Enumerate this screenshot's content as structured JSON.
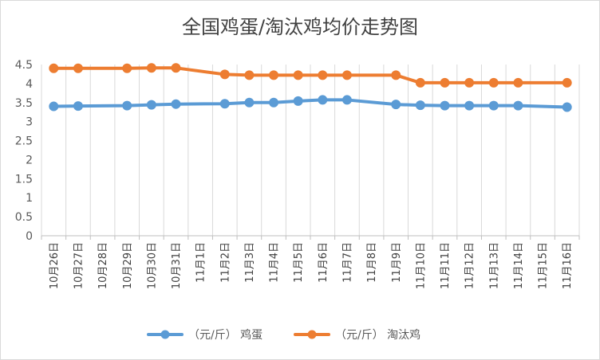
{
  "chart_data": {
    "type": "line",
    "title": "全国鸡蛋/淘汰鸡均价走势图",
    "categories": [
      "10月26日",
      "10月27日",
      "10月28日",
      "10月29日",
      "10月30日",
      "10月31日",
      "11月1日",
      "11月2日",
      "11月3日",
      "11月4日",
      "11月5日",
      "11月6日",
      "11月7日",
      "11月8日",
      "11月9日",
      "11月10日",
      "11月11日",
      "11月12日",
      "11月13日",
      "11月14日",
      "11月15日",
      "11月16日"
    ],
    "series": [
      {
        "name": "（元/斤） 鸡蛋",
        "color": "#5b9bd5",
        "values": [
          3.4,
          3.41,
          null,
          3.42,
          3.44,
          3.46,
          null,
          3.47,
          3.5,
          3.5,
          3.54,
          3.57,
          3.57,
          null,
          3.45,
          3.43,
          3.42,
          3.42,
          3.42,
          3.42,
          null,
          3.38
        ]
      },
      {
        "name": "（元/斤） 淘汰鸡",
        "color": "#ed7d31",
        "values": [
          4.4,
          4.4,
          null,
          4.4,
          4.41,
          4.41,
          null,
          4.24,
          4.22,
          4.22,
          4.22,
          4.22,
          4.22,
          null,
          4.22,
          4.02,
          4.02,
          4.02,
          4.02,
          4.02,
          null,
          4.02
        ]
      }
    ],
    "yticks": [
      "0",
      "0.5",
      "1",
      "1.5",
      "2",
      "2.5",
      "3",
      "3.5",
      "4",
      "4.5"
    ],
    "ylim": [
      0,
      4.5
    ],
    "grid": "vertical",
    "legend": "bottom",
    "xlabel": "",
    "ylabel": ""
  }
}
